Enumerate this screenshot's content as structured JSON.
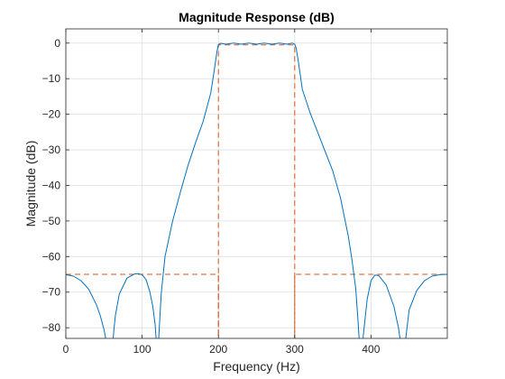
{
  "chart_data": {
    "type": "line",
    "title": "Magnitude Response (dB)",
    "xlabel": "Frequency (Hz)",
    "ylabel": "Magnitude (dB)",
    "xlim": [
      0,
      500
    ],
    "ylim": [
      -83,
      4
    ],
    "x_ticks": [
      0,
      100,
      200,
      300,
      400
    ],
    "x_tick_labels": [
      "0",
      "100",
      "200",
      "300",
      "400"
    ],
    "y_ticks": [
      0,
      -10,
      -20,
      -30,
      -40,
      -50,
      -60,
      -70,
      -80
    ],
    "y_tick_labels": [
      "0",
      "-10",
      "-20",
      "-30",
      "-40",
      "-50",
      "-60",
      "-70",
      "-80"
    ],
    "grid": true,
    "colors": {
      "response": "#0072BD",
      "mask": "#D95319",
      "axes": "#262626",
      "grid": "#dfdfdf"
    },
    "series": [
      {
        "role": "response",
        "x": [
          0,
          10,
          20,
          30,
          40,
          45,
          50,
          55,
          58,
          61,
          63,
          65,
          70,
          80,
          90,
          95,
          100,
          105,
          110,
          114,
          117,
          119,
          120,
          122,
          125,
          130,
          140,
          150,
          160,
          170,
          180,
          190,
          195,
          198,
          200,
          203,
          210,
          220,
          230,
          240,
          250,
          260,
          270,
          280,
          290,
          297,
          300,
          302,
          305,
          310,
          320,
          330,
          340,
          350,
          360,
          370,
          375,
          380,
          383,
          385,
          388,
          390,
          395,
          400,
          405,
          410,
          420,
          430,
          436,
          440,
          442,
          445,
          450,
          460,
          470,
          480,
          490,
          500
        ],
        "y": [
          -65.1,
          -65.5,
          -66.8,
          -69.2,
          -73.5,
          -76.5,
          -80.5,
          -86,
          -92,
          -86,
          -80.5,
          -76.5,
          -70.6,
          -66.1,
          -64.9,
          -64.8,
          -65.1,
          -66.4,
          -69.8,
          -74,
          -79,
          -85,
          -90,
          -82,
          -70.5,
          -60,
          -50,
          -42,
          -34.5,
          -28,
          -22,
          -14,
          -7,
          -2.5,
          -0.4,
          -0.05,
          -0.3,
          0,
          -0.3,
          0,
          -0.3,
          0,
          -0.3,
          0,
          -0.3,
          0,
          -0.3,
          -1.5,
          -5.5,
          -13,
          -19.5,
          -25,
          -30.5,
          -36,
          -43.5,
          -54,
          -60.8,
          -69,
          -78,
          -85,
          -88,
          -82,
          -72,
          -66.8,
          -65.2,
          -65.3,
          -68,
          -74,
          -80,
          -86,
          -92,
          -84,
          -75,
          -69.5,
          -66.8,
          -65.5,
          -65.1,
          -65
        ]
      },
      {
        "role": "mask",
        "segments": [
          {
            "x": [
              0,
              200,
              200
            ],
            "y": [
              -65,
              -65,
              -90
            ]
          },
          {
            "x": [
              200,
              200,
              300,
              300
            ],
            "y": [
              -90,
              -0.5,
              -0.5,
              -90
            ]
          },
          {
            "x": [
              300,
              300,
              500
            ],
            "y": [
              -90,
              -65,
              -65
            ]
          }
        ]
      }
    ]
  }
}
